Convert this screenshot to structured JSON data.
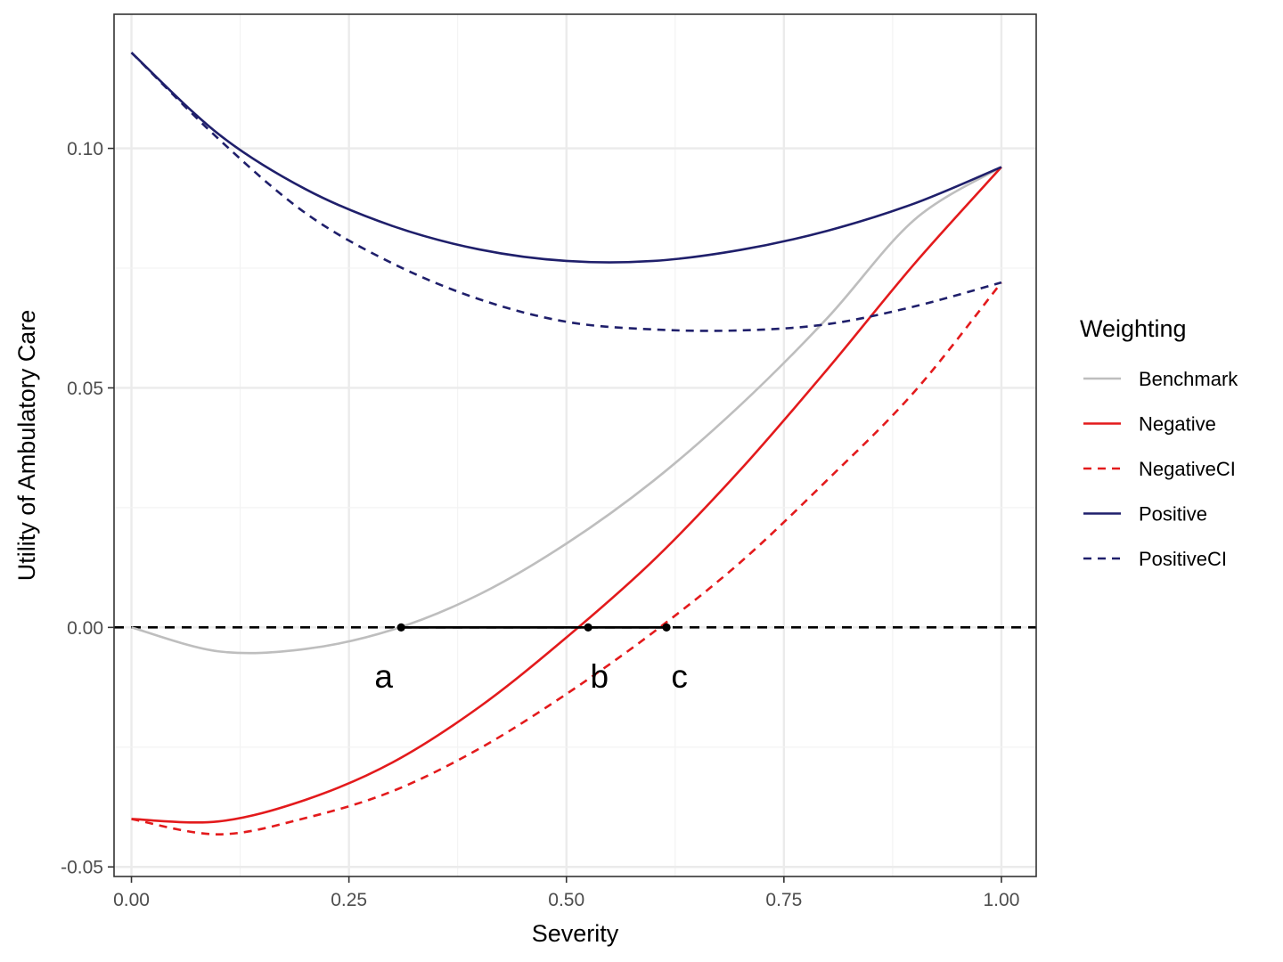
{
  "chart_data": {
    "type": "line",
    "title": "",
    "xlabel": "Severity",
    "ylabel": "Utility of Ambulatory Care",
    "xlim": [
      -0.02,
      1.04
    ],
    "ylim": [
      -0.052,
      0.128
    ],
    "x_ticks": [
      {
        "value": 0.0,
        "label": "0.00"
      },
      {
        "value": 0.25,
        "label": "0.25"
      },
      {
        "value": 0.5,
        "label": "0.50"
      },
      {
        "value": 0.75,
        "label": "0.75"
      },
      {
        "value": 1.0,
        "label": "1.00"
      }
    ],
    "y_ticks": [
      {
        "value": -0.05,
        "label": "-0.05"
      },
      {
        "value": 0.0,
        "label": "0.00"
      },
      {
        "value": 0.05,
        "label": "0.05"
      },
      {
        "value": 0.1,
        "label": "0.10"
      }
    ],
    "grid": true,
    "legend": {
      "title": "Weighting",
      "position": "right",
      "entries": [
        {
          "label": "Benchmark",
          "color": "#bebebe",
          "dash": "solid"
        },
        {
          "label": "Negative",
          "color": "#e31a1c",
          "dash": "solid"
        },
        {
          "label": "NegativeCI",
          "color": "#e31a1c",
          "dash": "dashed"
        },
        {
          "label": "Positive",
          "color": "#1f1f6b",
          "dash": "solid"
        },
        {
          "label": "PositiveCI",
          "color": "#1f1f6b",
          "dash": "dashed"
        }
      ]
    },
    "series": [
      {
        "name": "Benchmark",
        "color": "#bebebe",
        "dash": "solid",
        "x": [
          0,
          0.1,
          0.2,
          0.3,
          0.4,
          0.5,
          0.6,
          0.7,
          0.8,
          0.9,
          1.0
        ],
        "y": [
          0.0,
          -0.005,
          -0.0045,
          -0.0005,
          0.0069,
          0.0175,
          0.0306,
          0.0464,
          0.0646,
          0.0851,
          0.0961
        ]
      },
      {
        "name": "Negative",
        "color": "#e31a1c",
        "dash": "solid",
        "x": [
          0,
          0.1,
          0.2,
          0.3,
          0.4,
          0.5,
          0.6,
          0.7,
          0.8,
          0.9,
          1.0
        ],
        "y": [
          -0.04,
          -0.0405,
          -0.036,
          -0.0282,
          -0.0166,
          -0.0021,
          0.014,
          0.0329,
          0.0539,
          0.0759,
          0.0961
        ]
      },
      {
        "name": "NegativeCI",
        "color": "#e31a1c",
        "dash": "dashed",
        "x": [
          0,
          0.1,
          0.2,
          0.3,
          0.4,
          0.5,
          0.6,
          0.7,
          0.8,
          0.9,
          1.0
        ],
        "y": [
          -0.04,
          -0.0432,
          -0.0398,
          -0.0342,
          -0.0253,
          -0.0139,
          -0.001,
          0.0136,
          0.0308,
          0.0492,
          0.072
        ]
      },
      {
        "name": "Positive",
        "color": "#1f1f6b",
        "dash": "solid",
        "x": [
          0,
          0.1,
          0.2,
          0.3,
          0.4,
          0.5,
          0.6,
          0.7,
          0.8,
          0.9,
          1.0
        ],
        "y": [
          0.12,
          0.103,
          0.0915,
          0.0838,
          0.0789,
          0.0765,
          0.0765,
          0.0788,
          0.0828,
          0.0885,
          0.0961
        ]
      },
      {
        "name": "PositiveCI",
        "color": "#1f1f6b",
        "dash": "dashed",
        "x": [
          0,
          0.1,
          0.2,
          0.3,
          0.4,
          0.5,
          0.6,
          0.7,
          0.8,
          0.9,
          1.0
        ],
        "y": [
          0.12,
          0.102,
          0.0865,
          0.076,
          0.0685,
          0.0638,
          0.0622,
          0.062,
          0.0633,
          0.067,
          0.072
        ]
      }
    ],
    "reference_line": {
      "y": 0.0,
      "style": "dashed",
      "color": "#000000"
    },
    "segment": {
      "x_start": 0.31,
      "x_end": 0.615,
      "y": 0.0,
      "color": "#000000"
    },
    "points": [
      {
        "label": "a",
        "x": 0.31,
        "y": 0.0
      },
      {
        "label": "b",
        "x": 0.525,
        "y": 0.0
      },
      {
        "label": "c",
        "x": 0.615,
        "y": 0.0
      }
    ],
    "point_labels": [
      {
        "label": "a",
        "x": 0.29,
        "y": -0.0108
      },
      {
        "label": "b",
        "x": 0.538,
        "y": -0.0108
      },
      {
        "label": "c",
        "x": 0.63,
        "y": -0.0108
      }
    ]
  }
}
